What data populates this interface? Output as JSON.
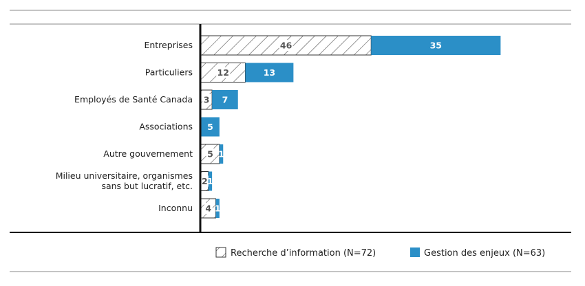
{
  "chart_data": {
    "type": "bar",
    "orientation": "horizontal",
    "stacked": true,
    "categories": [
      [
        "Entreprises"
      ],
      [
        "Particuliers"
      ],
      [
        "Employés de Santé Canada"
      ],
      [
        "Associations"
      ],
      [
        "Autre gouvernement"
      ],
      [
        "Milieu universitaire, organismes",
        "sans but lucratif, etc."
      ],
      [
        "Inconnu"
      ]
    ],
    "series": [
      {
        "name": "Recherche d’information  (N=72)",
        "values": [
          46,
          12,
          3,
          0,
          5,
          2,
          4
        ],
        "pattern": "hatch",
        "color": "#ffffff"
      },
      {
        "name": "Gestion des enjeux  (N=63)",
        "values": [
          35,
          13,
          7,
          5,
          1,
          1,
          1
        ],
        "pattern": "solid",
        "color": "#2b8fc7"
      }
    ],
    "xlim": [
      0,
      81
    ],
    "legend_position": "bottom-right",
    "grid": false
  }
}
